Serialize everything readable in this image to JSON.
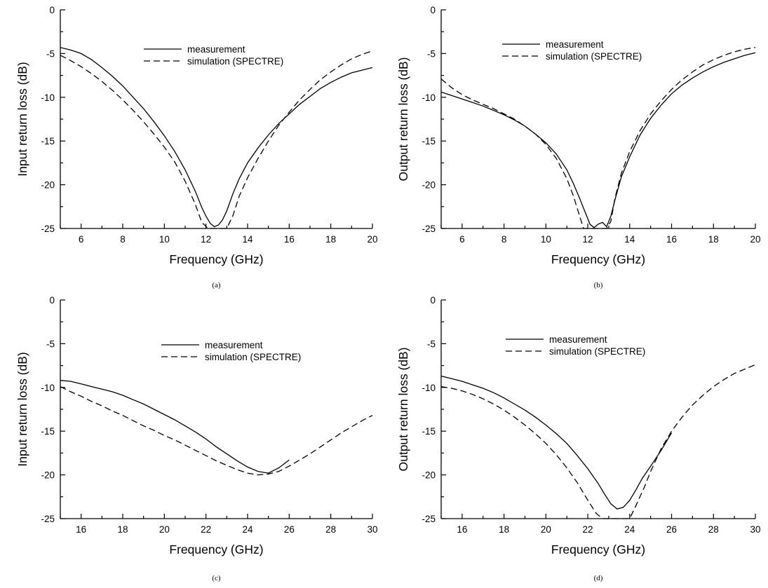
{
  "chart_data": [
    {
      "type": "line",
      "panel_label": "(a)",
      "xlabel": "Frequency (GHz)",
      "ylabel": "Input return loss (dB)",
      "xlim": [
        5,
        20
      ],
      "ylim": [
        -25,
        0
      ],
      "xticks": [
        6,
        8,
        10,
        12,
        14,
        16,
        18,
        20
      ],
      "yticks": [
        0,
        -5,
        -10,
        -15,
        -20,
        -25
      ],
      "legend_position": "top-center",
      "series": [
        {
          "name": "measurement",
          "style": "solid",
          "x": [
            5,
            5.5,
            6,
            6.5,
            7,
            7.5,
            8,
            8.5,
            9,
            9.5,
            10,
            10.5,
            11,
            11.5,
            11.8,
            12.0,
            12.2,
            12.4,
            12.6,
            12.8,
            13.0,
            13.3,
            13.6,
            14,
            14.5,
            15,
            15.5,
            16,
            16.5,
            17,
            17.5,
            18,
            18.5,
            19,
            19.5,
            20
          ],
          "y": [
            -4.3,
            -4.6,
            -5.0,
            -5.7,
            -6.6,
            -7.6,
            -8.7,
            -10.0,
            -11.3,
            -12.8,
            -14.4,
            -16.2,
            -18.3,
            -20.8,
            -22.6,
            -23.6,
            -24.4,
            -24.8,
            -24.6,
            -24.0,
            -23.0,
            -21.0,
            -19.3,
            -17.5,
            -15.8,
            -14.3,
            -13.0,
            -11.9,
            -10.8,
            -9.9,
            -9.0,
            -8.3,
            -7.7,
            -7.2,
            -6.9,
            -6.6
          ]
        },
        {
          "name": "simulation (SPECTRE)",
          "style": "dashed",
          "x": [
            5,
            5.5,
            6,
            6.5,
            7,
            7.5,
            8,
            8.5,
            9,
            9.5,
            10,
            10.5,
            11,
            11.5,
            11.8,
            12.1,
            12.4,
            12.7,
            13.0,
            13.3,
            13.6,
            14,
            14.5,
            15,
            15.5,
            16,
            16.5,
            17,
            17.5,
            18,
            18.5,
            19,
            19.5,
            20
          ],
          "y": [
            -5.2,
            -5.8,
            -6.5,
            -7.3,
            -8.2,
            -9.2,
            -10.3,
            -11.5,
            -12.8,
            -14.2,
            -15.7,
            -17.4,
            -19.6,
            -22.3,
            -24.3,
            -25,
            -25,
            -25,
            -25,
            -23.5,
            -21.3,
            -19.2,
            -17.0,
            -15.0,
            -13.2,
            -11.7,
            -10.3,
            -9.1,
            -8.0,
            -7.1,
            -6.3,
            -5.6,
            -5.1,
            -4.7
          ]
        }
      ]
    },
    {
      "type": "line",
      "panel_label": "(b)",
      "xlabel": "Frequency (GHz)",
      "ylabel": "Output return loss (dB)",
      "xlim": [
        5,
        20
      ],
      "ylim": [
        -25,
        0
      ],
      "xticks": [
        6,
        8,
        10,
        12,
        14,
        16,
        18,
        20
      ],
      "yticks": [
        0,
        -5,
        -10,
        -15,
        -20,
        -25
      ],
      "legend_position": "top-center",
      "series": [
        {
          "name": "measurement",
          "style": "solid",
          "x": [
            5,
            5.5,
            6,
            6.5,
            7,
            7.5,
            8,
            8.5,
            9,
            9.5,
            10,
            10.5,
            11,
            11.3,
            11.6,
            11.9,
            12.1,
            12.3,
            12.5,
            12.7,
            12.9,
            13.1,
            13.3,
            13.6,
            14,
            14.5,
            15,
            15.5,
            16,
            16.5,
            17,
            17.5,
            18,
            18.5,
            19,
            19.5,
            20
          ],
          "y": [
            -9.4,
            -9.8,
            -10.2,
            -10.6,
            -11.0,
            -11.5,
            -12.0,
            -12.6,
            -13.3,
            -14.2,
            -15.2,
            -16.5,
            -18.3,
            -19.8,
            -21.5,
            -23.3,
            -24.5,
            -24.9,
            -24.5,
            -24.3,
            -24.8,
            -23.6,
            -21.7,
            -19.1,
            -16.8,
            -14.3,
            -12.4,
            -10.9,
            -9.6,
            -8.6,
            -7.8,
            -7.1,
            -6.5,
            -6.0,
            -5.6,
            -5.2,
            -4.9
          ]
        },
        {
          "name": "simulation (SPECTRE)",
          "style": "dashed",
          "x": [
            5,
            5.5,
            6,
            6.5,
            7,
            7.5,
            8,
            8.5,
            9,
            9.5,
            10,
            10.5,
            11,
            11.3,
            11.6,
            11.8,
            12.0,
            12.3,
            12.6,
            12.9,
            13.1,
            13.3,
            13.6,
            14,
            14.5,
            15,
            15.5,
            16,
            16.5,
            17,
            17.5,
            18,
            18.5,
            19,
            19.5,
            20
          ],
          "y": [
            -7.9,
            -8.9,
            -9.7,
            -10.3,
            -10.8,
            -11.3,
            -11.9,
            -12.5,
            -13.3,
            -14.2,
            -15.4,
            -17.0,
            -19.3,
            -21.2,
            -23.5,
            -25,
            -25,
            -25,
            -25,
            -25,
            -24.2,
            -21.5,
            -18.7,
            -16.2,
            -13.8,
            -11.9,
            -10.4,
            -9.1,
            -8.0,
            -7.1,
            -6.3,
            -5.7,
            -5.2,
            -4.8,
            -4.5,
            -4.3
          ]
        }
      ]
    },
    {
      "type": "line",
      "panel_label": "(c)",
      "xlabel": "Frequency (GHz)",
      "ylabel": "Input return loss (dB)",
      "xlim": [
        15,
        30
      ],
      "ylim": [
        -25,
        0
      ],
      "xticks": [
        16,
        18,
        20,
        22,
        24,
        26,
        28,
        30
      ],
      "yticks": [
        0,
        -5,
        -10,
        -15,
        -20,
        -25
      ],
      "legend_position": "top-center",
      "series": [
        {
          "name": "measurement",
          "style": "solid",
          "x": [
            15,
            15.5,
            16,
            16.5,
            17,
            17.5,
            18,
            18.5,
            19,
            19.5,
            20,
            20.5,
            21,
            21.5,
            22,
            22.5,
            23,
            23.5,
            24,
            24.5,
            25,
            25.5,
            26
          ],
          "y": [
            -9.2,
            -9.3,
            -9.6,
            -9.9,
            -10.2,
            -10.5,
            -10.9,
            -11.4,
            -11.9,
            -12.5,
            -13.1,
            -13.7,
            -14.4,
            -15.1,
            -15.9,
            -16.8,
            -17.6,
            -18.4,
            -19.1,
            -19.6,
            -19.8,
            -19.2,
            -18.3
          ]
        },
        {
          "name": "simulation (SPECTRE)",
          "style": "dashed",
          "x": [
            15,
            15.5,
            16,
            16.5,
            17,
            17.5,
            18,
            18.5,
            19,
            19.5,
            20,
            20.5,
            21,
            21.5,
            22,
            22.5,
            23,
            23.5,
            24,
            24.5,
            25,
            25.5,
            26,
            26.5,
            27,
            27.5,
            28,
            28.5,
            29,
            29.5,
            30
          ],
          "y": [
            -9.9,
            -10.5,
            -11.0,
            -11.6,
            -12.1,
            -12.7,
            -13.2,
            -13.8,
            -14.4,
            -14.9,
            -15.5,
            -16.0,
            -16.6,
            -17.2,
            -17.8,
            -18.4,
            -18.9,
            -19.4,
            -19.8,
            -20.0,
            -19.9,
            -19.6,
            -19.0,
            -18.3,
            -17.6,
            -16.8,
            -16.0,
            -15.2,
            -14.5,
            -13.8,
            -13.2
          ]
        }
      ]
    },
    {
      "type": "line",
      "panel_label": "(d)",
      "xlabel": "Frequency (GHz)",
      "ylabel": "Output return loss (dB)",
      "xlim": [
        15,
        30
      ],
      "ylim": [
        -25,
        0
      ],
      "xticks": [
        16,
        18,
        20,
        22,
        24,
        26,
        28,
        30
      ],
      "yticks": [
        0,
        -5,
        -10,
        -15,
        -20,
        -25
      ],
      "legend_position": "top-center",
      "series": [
        {
          "name": "measurement",
          "style": "solid",
          "x": [
            15,
            15.5,
            16,
            16.5,
            17,
            17.5,
            18,
            18.5,
            19,
            19.5,
            20,
            20.5,
            21,
            21.5,
            22,
            22.5,
            22.8,
            23.1,
            23.4,
            23.7,
            24.0,
            24.3,
            24.6,
            25.0,
            25.5,
            26
          ],
          "y": [
            -8.7,
            -9.0,
            -9.3,
            -9.7,
            -10.1,
            -10.6,
            -11.2,
            -11.9,
            -12.6,
            -13.4,
            -14.3,
            -15.3,
            -16.4,
            -17.8,
            -19.3,
            -21.0,
            -22.2,
            -23.3,
            -23.9,
            -23.7,
            -22.9,
            -21.7,
            -20.4,
            -19.0,
            -17.2,
            -15.2
          ]
        },
        {
          "name": "simulation (SPECTRE)",
          "style": "dashed",
          "x": [
            15,
            15.5,
            16,
            16.5,
            17,
            17.5,
            18,
            18.5,
            19,
            19.5,
            20,
            20.5,
            21,
            21.5,
            22,
            22.4,
            22.7,
            23.0,
            23.5,
            24.0,
            24.3,
            24.7,
            25.0,
            25.5,
            26,
            26.5,
            27,
            27.5,
            28,
            28.5,
            29,
            29.5,
            30
          ],
          "y": [
            -9.9,
            -10.1,
            -10.4,
            -10.8,
            -11.3,
            -11.9,
            -12.6,
            -13.4,
            -14.3,
            -15.3,
            -16.4,
            -17.7,
            -19.2,
            -20.9,
            -22.9,
            -24.4,
            -25,
            -25,
            -25,
            -25,
            -23.5,
            -21.4,
            -19.6,
            -17.0,
            -15.0,
            -13.4,
            -12.0,
            -10.9,
            -9.9,
            -9.1,
            -8.4,
            -7.9,
            -7.4
          ]
        }
      ]
    }
  ]
}
